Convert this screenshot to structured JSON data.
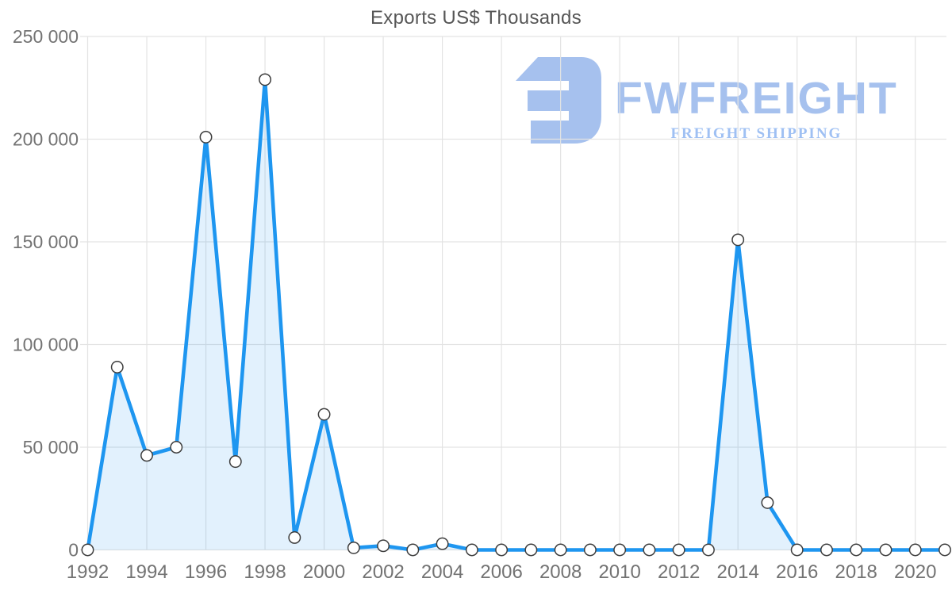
{
  "chart_data": {
    "type": "area",
    "title": "Exports US$ Thousands",
    "xlabel": "",
    "ylabel": "",
    "x": [
      1992,
      1993,
      1994,
      1995,
      1996,
      1997,
      1998,
      1999,
      2000,
      2001,
      2002,
      2003,
      2004,
      2005,
      2006,
      2007,
      2008,
      2009,
      2010,
      2011,
      2012,
      2013,
      2014,
      2015,
      2016,
      2017,
      2018,
      2019,
      2020,
      2021
    ],
    "values": [
      0,
      89000,
      46000,
      50000,
      201000,
      43000,
      229000,
      6000,
      66000,
      1000,
      2000,
      0,
      3000,
      0,
      0,
      0,
      0,
      0,
      0,
      0,
      0,
      0,
      151000,
      23000,
      0,
      0,
      0,
      0,
      0,
      0
    ],
    "ylim": [
      0,
      250000
    ],
    "yticks": [
      0,
      50000,
      100000,
      150000,
      200000,
      250000
    ],
    "ytick_labels": [
      "0",
      "50 000",
      "100 000",
      "150 000",
      "200 000",
      "250 000"
    ],
    "xticks": [
      1992,
      1994,
      1996,
      1998,
      2000,
      2002,
      2004,
      2006,
      2008,
      2010,
      2012,
      2014,
      2016,
      2018,
      2020
    ],
    "grid": true,
    "legend": "none",
    "colors": {
      "line": "#1e96f0",
      "area_fill": "rgba(30,150,240,0.13)",
      "grid": "#e3e3e3",
      "axis_text": "#737373",
      "marker_fill": "#ffffff",
      "marker_stroke": "#3d3d3d",
      "title": "#565656"
    }
  },
  "watermark": {
    "brand": "FWFREIGHT",
    "tagline": "FREIGHT SHIPPING",
    "color": "#a6c1ee",
    "tagline_color": "#9fc0f3"
  }
}
